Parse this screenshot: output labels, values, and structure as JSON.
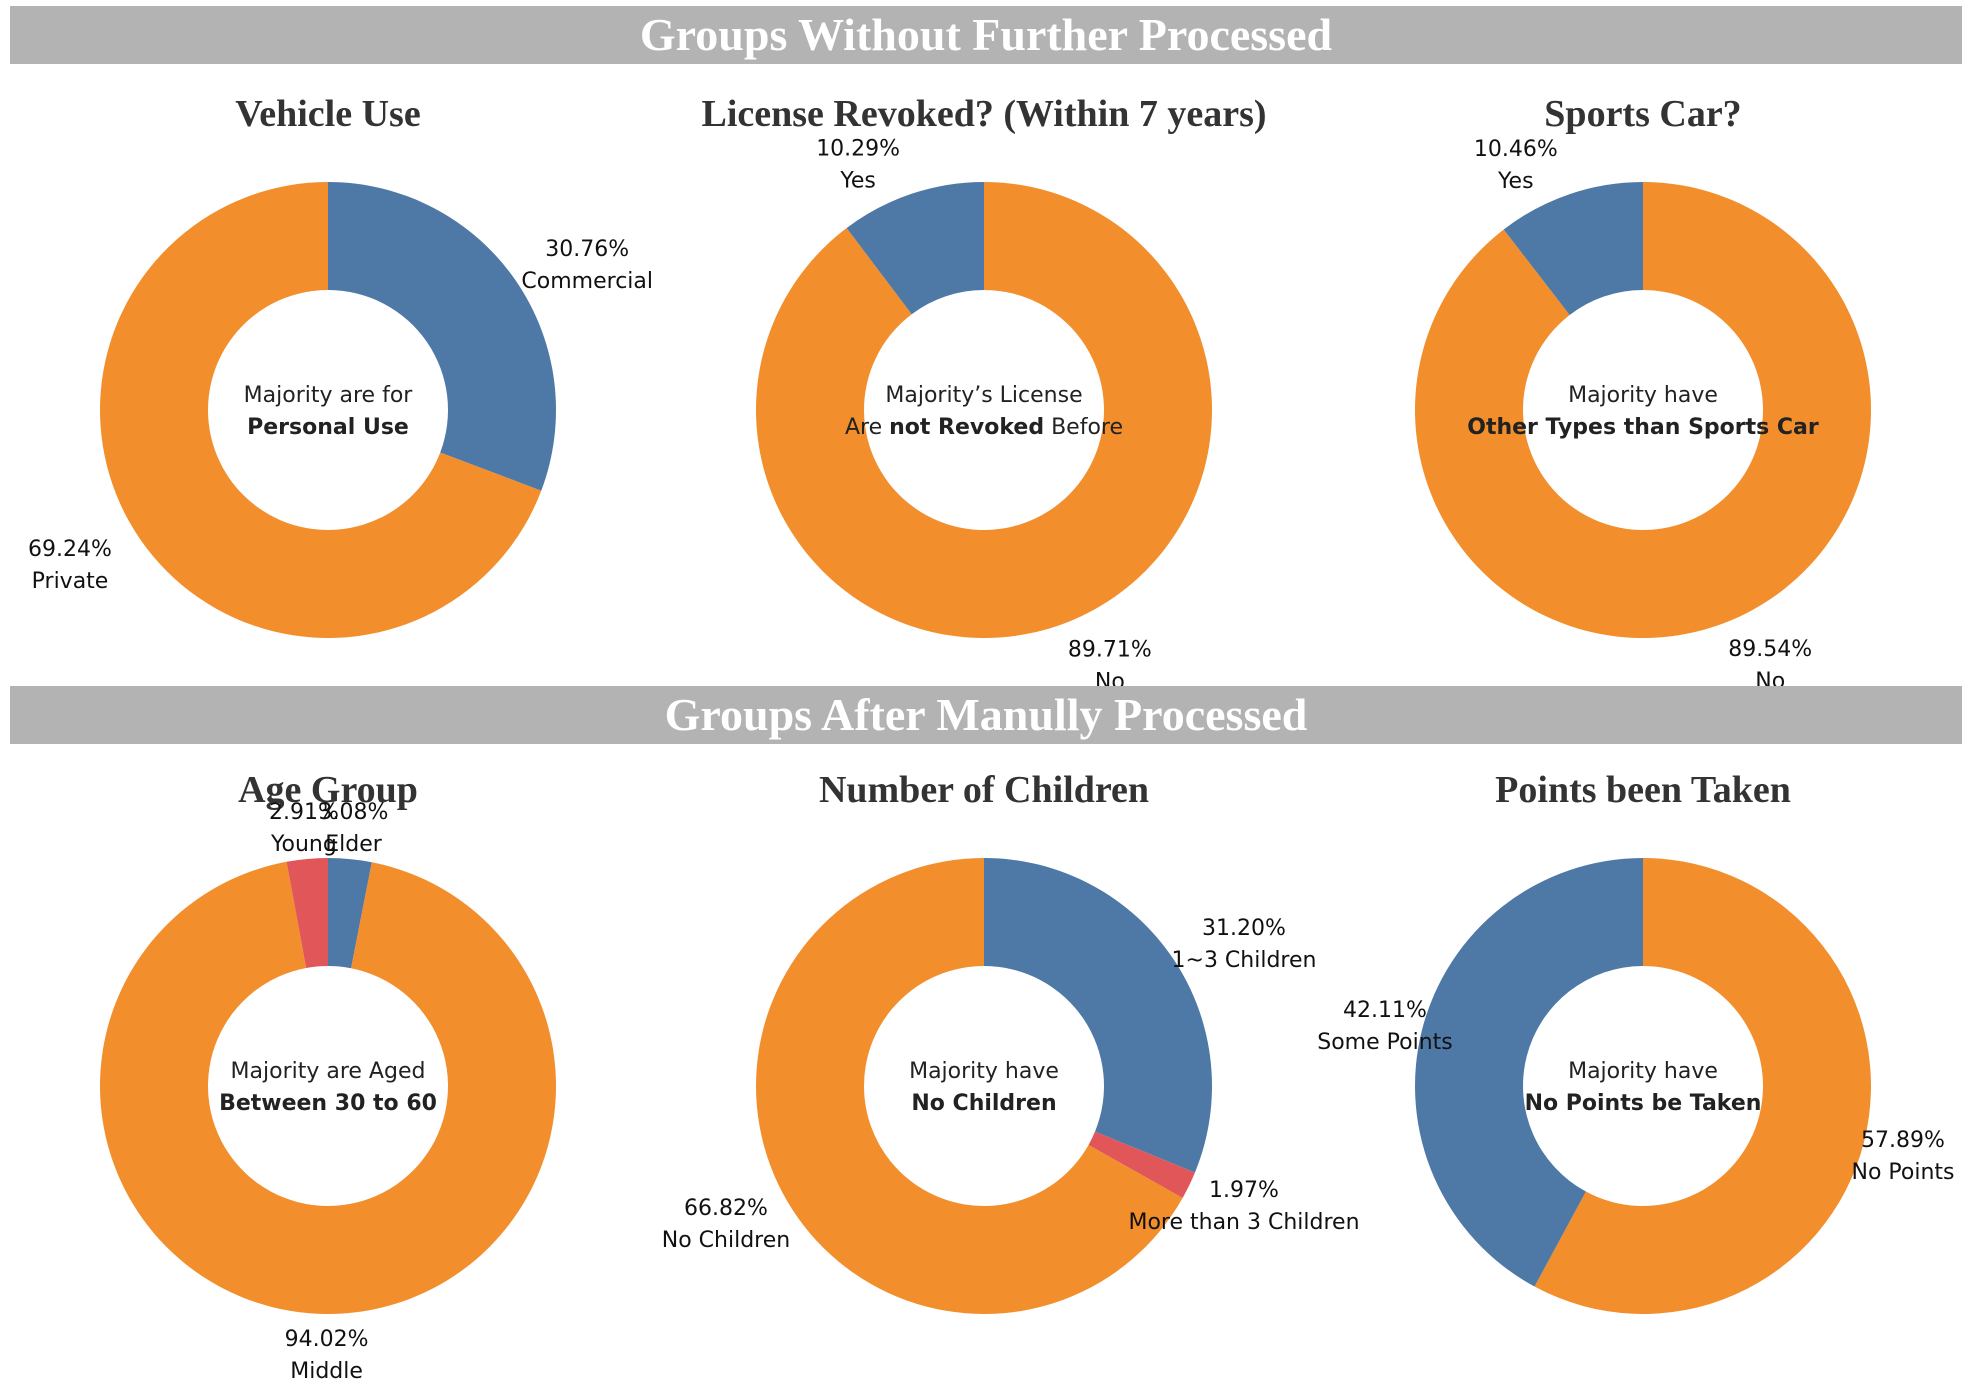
{
  "sections": {
    "top_title": "Groups Without Further Processed",
    "bottom_title": "Groups After Manully Processed"
  },
  "colors": {
    "banner": "#b3b3b3",
    "orange": "#f28e2b",
    "blue": "#4e79a7",
    "red": "#e15759"
  },
  "chart_data": [
    {
      "type": "pie",
      "title": "Vehicle Use",
      "hole": true,
      "slices": [
        {
          "label": "Commercial",
          "value": 30.76,
          "display": "30.76%",
          "color": "#4e79a7"
        },
        {
          "label": "Private",
          "value": 69.24,
          "display": "69.24%",
          "color": "#f28e2b"
        }
      ],
      "center": [
        [
          {
            "text": "Majority are for",
            "bold": false
          }
        ],
        [
          {
            "text": "Personal Use",
            "bold": true
          }
        ]
      ]
    },
    {
      "type": "pie",
      "title": "License Revoked? (Within 7 years)",
      "hole": true,
      "slices": [
        {
          "label": "No",
          "value": 89.71,
          "display": "89.71%",
          "color": "#f28e2b"
        },
        {
          "label": "Yes",
          "value": 10.29,
          "display": "10.29%",
          "color": "#4e79a7"
        }
      ],
      "center": [
        [
          {
            "text": "Majority’s License",
            "bold": false
          }
        ],
        [
          {
            "text": "Are ",
            "bold": false
          },
          {
            "text": "not Revoked",
            "bold": true
          },
          {
            "text": " Before",
            "bold": false
          }
        ]
      ]
    },
    {
      "type": "pie",
      "title": "Sports Car?",
      "hole": true,
      "slices": [
        {
          "label": "No",
          "value": 89.54,
          "display": "89.54%",
          "color": "#f28e2b"
        },
        {
          "label": "Yes",
          "value": 10.46,
          "display": "10.46%",
          "color": "#4e79a7"
        }
      ],
      "center": [
        [
          {
            "text": "Majority have",
            "bold": false
          }
        ],
        [
          {
            "text": "Other Types than Sports Car",
            "bold": true
          }
        ]
      ]
    },
    {
      "type": "pie",
      "title": "Age Group",
      "hole": true,
      "slices": [
        {
          "label": "Elder",
          "value": 3.08,
          "display": "3.08%",
          "color": "#4e79a7"
        },
        {
          "label": "Middle",
          "value": 94.02,
          "display": "94.02%",
          "color": "#f28e2b"
        },
        {
          "label": "Young",
          "value": 2.91,
          "display": "2.91%",
          "color": "#e15759"
        }
      ],
      "center": [
        [
          {
            "text": "Majority are Aged",
            "bold": false
          }
        ],
        [
          {
            "text": "Between 30 to 60",
            "bold": true
          }
        ]
      ]
    },
    {
      "type": "pie",
      "title": "Number of Children",
      "hole": true,
      "slices": [
        {
          "label": "1~3 Children",
          "value": 31.2,
          "display": "31.20%",
          "color": "#4e79a7"
        },
        {
          "label": "More than 3 Children",
          "value": 1.97,
          "display": "1.97%",
          "color": "#e15759"
        },
        {
          "label": "No Children",
          "value": 66.82,
          "display": "66.82%",
          "color": "#f28e2b"
        }
      ],
      "center": [
        [
          {
            "text": "Majority have",
            "bold": false
          }
        ],
        [
          {
            "text": "No Children",
            "bold": true
          }
        ]
      ]
    },
    {
      "type": "pie",
      "title": "Points been Taken",
      "hole": true,
      "slices": [
        {
          "label": "No Points",
          "value": 57.89,
          "display": "57.89%",
          "color": "#f28e2b"
        },
        {
          "label": "Some Points",
          "value": 42.11,
          "display": "42.11%",
          "color": "#4e79a7"
        }
      ],
      "center": [
        [
          {
            "text": "Majority have",
            "bold": false
          }
        ],
        [
          {
            "text": "No Points be Taken",
            "bold": true
          }
        ]
      ]
    }
  ]
}
